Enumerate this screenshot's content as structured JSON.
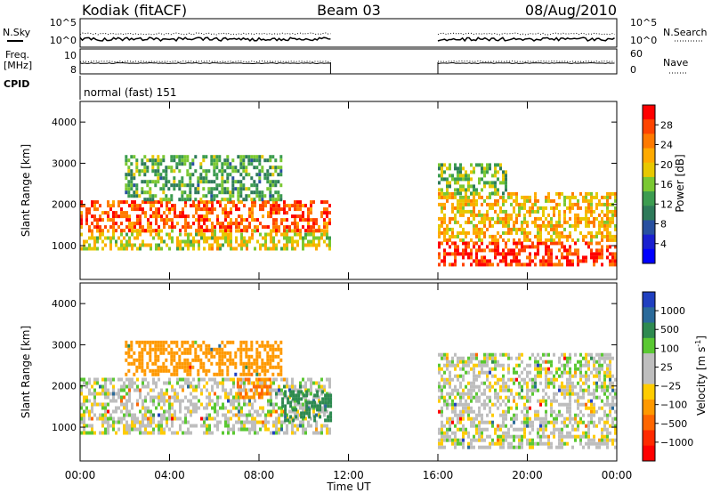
{
  "header": {
    "station": "Kodiak (fitACF)",
    "beam": "Beam 03",
    "date": "08/Aug/2010"
  },
  "summary": {
    "nsky_label": "N.Sky",
    "nsearch_label": "N.Search",
    "freq_label_1": "Freq.",
    "freq_label_2": "[MHz]",
    "nave_label": "Nave",
    "cpid_label": "CPID",
    "cpid_value": "normal (fast) 151",
    "left_ticks_noise": [
      "10^5",
      "10^0"
    ],
    "right_ticks_noise": [
      "10^5",
      "10^0"
    ],
    "left_ticks_freq": [
      "10",
      "8"
    ],
    "right_ticks_nave": [
      "60",
      "0"
    ]
  },
  "colorbars": {
    "power": {
      "title": "Power [dB]",
      "ticks": [
        "28",
        "24",
        "20",
        "16",
        "12",
        "8",
        "4"
      ],
      "colors": [
        "#ff0000",
        "#ff4400",
        "#ff7a00",
        "#ffaa00",
        "#e8c800",
        "#7ac832",
        "#3c9c50",
        "#2e7a5a",
        "#2850a0",
        "#1a20d0",
        "#0000ff"
      ]
    },
    "velocity": {
      "title": "Velocity [m s",
      "title_sup": "-1",
      "title_end": "]",
      "ticks": [
        "1000",
        "500",
        "100",
        "25",
        "−25",
        "−100",
        "−500",
        "−1000"
      ],
      "colors": [
        "#2040c0",
        "#2a6a9a",
        "#2e8a50",
        "#5ac832",
        "#bebebe",
        "#bebebe",
        "#ffcc00",
        "#ff9900",
        "#ff6600",
        "#ff2a00",
        "#ff0000"
      ]
    }
  },
  "chart_data": [
    {
      "type": "heatmap",
      "name": "power",
      "ylabel": "Slant Range [km]",
      "xlabel": "Time UT",
      "x_ticks": [
        "00:00",
        "04:00",
        "08:00",
        "12:00",
        "16:00",
        "20:00",
        "00:00"
      ],
      "y_ticks": [
        "1000",
        "2000",
        "3000",
        "4000"
      ],
      "xlim_hours": [
        0,
        24
      ],
      "ylim_km": [
        180,
        4500
      ],
      "data_gap_hours": [
        11.2,
        16.0
      ],
      "echo_bands": [
        {
          "t0": 0.0,
          "t1": 11.2,
          "r0": 900,
          "r1": 1400,
          "level_db": 18
        },
        {
          "t0": 0.0,
          "t1": 11.2,
          "r0": 1400,
          "r1": 2100,
          "level_db": 26
        },
        {
          "t0": 2.0,
          "t1": 9.0,
          "r0": 2100,
          "r1": 3200,
          "level_db": 12
        },
        {
          "t0": 16.0,
          "t1": 24.0,
          "r0": 500,
          "r1": 1100,
          "level_db": 28
        },
        {
          "t0": 16.0,
          "t1": 24.0,
          "r0": 1100,
          "r1": 2300,
          "level_db": 20
        },
        {
          "t0": 16.0,
          "t1": 19.0,
          "r0": 2300,
          "r1": 3000,
          "level_db": 14
        }
      ]
    },
    {
      "type": "heatmap",
      "name": "velocity",
      "ylabel": "Slant Range [km]",
      "xlabel": "Time UT",
      "x_ticks": [
        "00:00",
        "04:00",
        "08:00",
        "12:00",
        "16:00",
        "20:00",
        "00:00"
      ],
      "y_ticks": [
        "1000",
        "2000",
        "3000",
        "4000"
      ],
      "xlim_hours": [
        0,
        24
      ],
      "ylim_km": [
        180,
        4500
      ],
      "data_gap_hours": [
        11.2,
        16.0
      ],
      "echo_bands": [
        {
          "t0": 0.0,
          "t1": 11.2,
          "r0": 900,
          "r1": 2200,
          "velocity_ms": 0
        },
        {
          "t0": 9.0,
          "t1": 11.2,
          "r0": 1200,
          "r1": 1900,
          "velocity_ms": 150
        },
        {
          "t0": 7.0,
          "t1": 8.5,
          "r0": 1700,
          "r1": 2200,
          "velocity_ms": -300
        },
        {
          "t0": 2.0,
          "t1": 9.0,
          "r0": 2300,
          "r1": 3100,
          "velocity_ms": -150
        },
        {
          "t0": 16.0,
          "t1": 24.0,
          "r0": 500,
          "r1": 2800,
          "velocity_ms": 0
        }
      ]
    }
  ]
}
